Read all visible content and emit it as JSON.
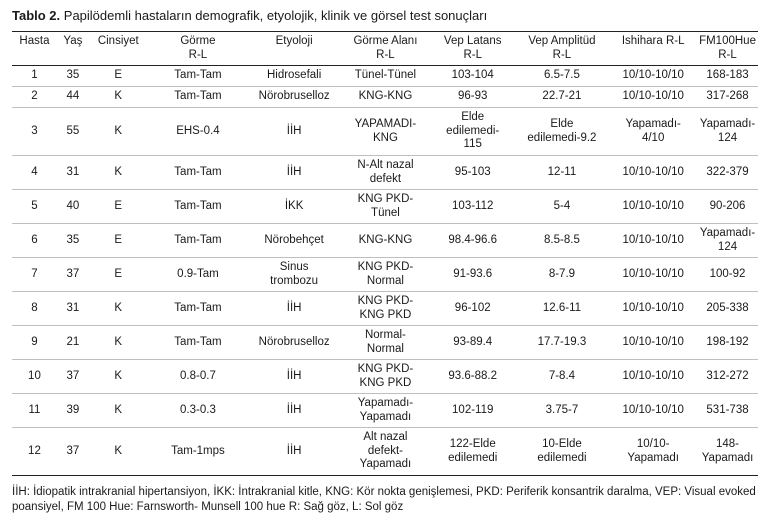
{
  "caption": {
    "label": "Tablo 2.",
    "text": " Papilödemli hastaların demografik, etyolojik, klinik ve görsel test sonuçları"
  },
  "headers": [
    "Hasta",
    "Yaş",
    "Cinsiyet",
    "Görme\nR-L",
    "Etyoloji",
    "Görme Alanı\nR-L",
    "Vep Latans\nR-L",
    "Vep Amplitüd\nR-L",
    "Ishihara R-L",
    "FM100Hue\nR-L"
  ],
  "rows": [
    [
      "1",
      "35",
      "E",
      "Tam-Tam",
      "Hidrosefali",
      "Tünel-Tünel",
      "103-104",
      "6.5-7.5",
      "10/10-10/10",
      "168-183"
    ],
    [
      "2",
      "44",
      "K",
      "Tam-Tam",
      "Nörobruselloz",
      "KNG-KNG",
      "96-93",
      "22.7-21",
      "10/10-10/10",
      "317-268"
    ],
    [
      "3",
      "55",
      "K",
      "EHS-0.4",
      "İİH",
      "YAPAMADI-\nKNG",
      "Elde\nedilemedi-\n115",
      "Elde\nedilemedi-9.2",
      "Yapamadı-\n4/10",
      "Yapamadı-\n124"
    ],
    [
      "4",
      "31",
      "K",
      "Tam-Tam",
      "İİH",
      "N-Alt nazal\ndefekt",
      "95-103",
      "12-11",
      "10/10-10/10",
      "322-379"
    ],
    [
      "5",
      "40",
      "E",
      "Tam-Tam",
      "İKK",
      "KNG PKD-\nTünel",
      "103-112",
      "5-4",
      "10/10-10/10",
      "90-206"
    ],
    [
      "6",
      "35",
      "E",
      "Tam-Tam",
      "Nörobehçet",
      "KNG-KNG",
      "98.4-96.6",
      "8.5-8.5",
      "10/10-10/10",
      "Yapamadı-\n124"
    ],
    [
      "7",
      "37",
      "E",
      "0.9-Tam",
      "Sinus\ntrombozu",
      "KNG PKD-\nNormal",
      "91-93.6",
      "8-7.9",
      "10/10-10/10",
      "100-92"
    ],
    [
      "8",
      "31",
      "K",
      "Tam-Tam",
      "İİH",
      "KNG PKD-\nKNG PKD",
      "96-102",
      "12.6-11",
      "10/10-10/10",
      "205-338"
    ],
    [
      "9",
      "21",
      "K",
      "Tam-Tam",
      "Nörobruselloz",
      "Normal-\nNormal",
      "93-89.4",
      "17.7-19.3",
      "10/10-10/10",
      "198-192"
    ],
    [
      "10",
      "37",
      "K",
      "0.8-0.7",
      "İİH",
      "KNG PKD-\nKNG PKD",
      "93.6-88.2",
      "7-8.4",
      "10/10-10/10",
      "312-272"
    ],
    [
      "11",
      "39",
      "K",
      "0.3-0.3",
      "İİH",
      "Yapamadı-\nYapamadı",
      "102-119",
      "3.75-7",
      "10/10-10/10",
      "531-738"
    ],
    [
      "12",
      "37",
      "K",
      "Tam-1mps",
      "İİH",
      "Alt nazal\ndefekt-\nYapamadı",
      "122-Elde\nedilemedi",
      "10-Elde\nedilemedi",
      "10/10-\nYapamadı",
      "148-\nYapamadı"
    ]
  ],
  "footnote": "İİH: İdiopatik intrakranial hipertansiyon, İKK: İntrakranial kitle, KNG: Kör nokta genişlemesi, PKD: Periferik konsantrik daralma, VEP: Visual evoked poansiyel, FM 100 Hue: Farnsworth- Munsell 100 hue R: Sağ göz, L: Sol göz"
}
